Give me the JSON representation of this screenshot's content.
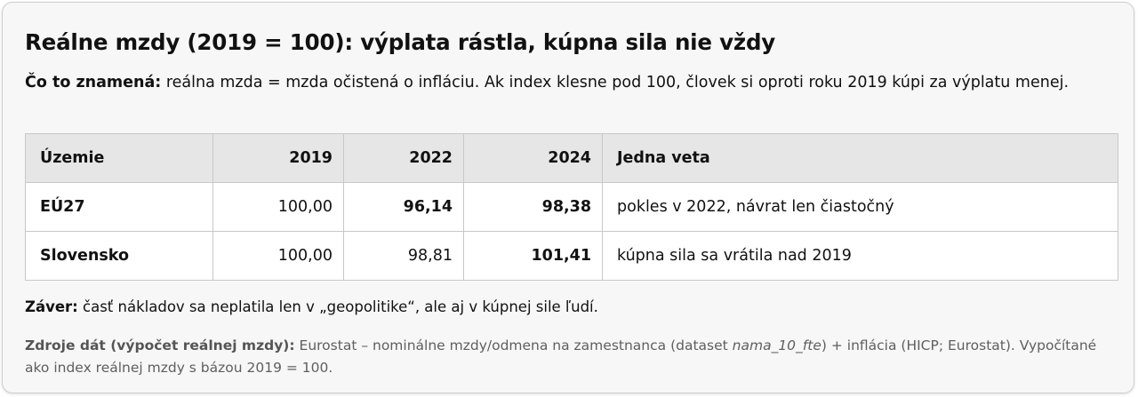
{
  "title": "Reálne mzdy (2019 = 100): výplata rástla, kúpna sila nie vždy",
  "intro": {
    "label": "Čo to znamená:",
    "text": "reálna mzda = mzda očistená o infláciu. Ak index klesne pod 100, človek si oproti roku 2019 kúpi za výplatu menej."
  },
  "table": {
    "headers": [
      "Územie",
      "2019",
      "2022",
      "2024",
      "Jedna veta"
    ],
    "rows": [
      {
        "territory": "EÚ27",
        "y2019": "100,00",
        "y2022": "96,14",
        "y2024": "98,38",
        "sentence": "pokles v 2022, návrat len čiastočný"
      },
      {
        "territory": "Slovensko",
        "y2019": "100,00",
        "y2022": "98,81",
        "y2024": "101,41",
        "sentence": "kúpna sila sa vrátila nad 2019"
      }
    ]
  },
  "conclusion": {
    "label": "Záver:",
    "text": "časť nákladov sa neplatila len v „geopolitike“, ale aj v kúpnej sile ľudí."
  },
  "sources": {
    "label": "Zdroje dát (výpočet reálnej mzdy):",
    "text_before": "Eurostat – nominálne mzdy/odmena na zamestnanca (dataset",
    "dataset": "nama_10_fte",
    "text_after": ") + inflácia (HICP; Eurostat). Vypočítané ako index reálnej mzdy s bázou 2019 = 100."
  }
}
